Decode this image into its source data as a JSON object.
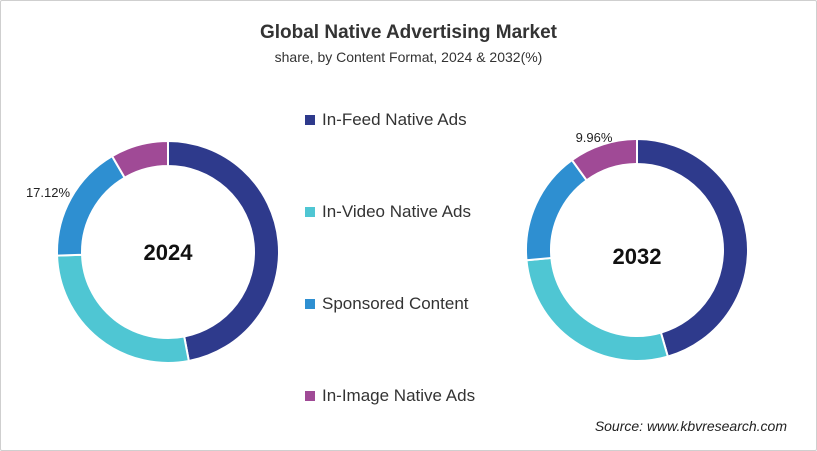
{
  "title": "Global Native Advertising Market",
  "subtitle": "share, by Content Format, 2024 & 2032(%)",
  "source": "Source: www.kbvresearch.com",
  "colors": {
    "In-Feed Native Ads": "#2e3a8c",
    "In-Video Native Ads": "#4fc6d3",
    "Sponsored Content": "#2e8fd1",
    "In-Image Native Ads": "#a04a96"
  },
  "chart_data": [
    {
      "type": "pie",
      "center_label": "2024",
      "categories": [
        "In-Feed Native Ads",
        "In-Video Native Ads",
        "Sponsored Content",
        "In-Image Native Ads"
      ],
      "values": [
        47.0,
        27.5,
        17.12,
        8.4
      ],
      "data_labels": [
        null,
        null,
        "17.12%",
        null
      ]
    },
    {
      "type": "pie",
      "center_label": "2032",
      "categories": [
        "In-Feed Native Ads",
        "In-Video Native Ads",
        "Sponsored Content",
        "In-Image Native Ads"
      ],
      "values": [
        45.5,
        28.0,
        16.5,
        9.96
      ],
      "data_labels": [
        null,
        null,
        null,
        "9.96%"
      ]
    }
  ],
  "legend": [
    "In-Feed Native Ads",
    "In-Video Native Ads",
    "Sponsored Content",
    "In-Image Native Ads"
  ]
}
